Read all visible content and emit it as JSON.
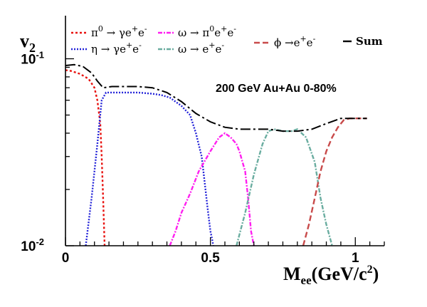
{
  "chart_data": {
    "type": "line",
    "title": "",
    "annotation": "200 GeV Au+Au 0-80%",
    "xlabel": {
      "main": "M",
      "sub": "ee",
      "rest": "(GeV/c",
      "sup": "2",
      "close": ")"
    },
    "ylabel": {
      "main": "v",
      "sub": "2"
    },
    "xlim": [
      0,
      1.1
    ],
    "ylim": [
      0.01,
      0.17
    ],
    "yscale": "log",
    "xticks": [
      {
        "v": 0,
        "label": "0"
      },
      {
        "v": 0.5,
        "label": "0.5"
      },
      {
        "v": 1,
        "label": "1"
      }
    ],
    "yticks": [
      {
        "v": 0.1,
        "base": "10",
        "exp": "-1"
      },
      {
        "v": 0.01,
        "base": "10",
        "exp": "-2"
      }
    ],
    "grid": false,
    "legend_position": "top",
    "series": [
      {
        "key": "pi0",
        "name": "π⁰ → γe⁺e⁻",
        "label_parts": [
          "π",
          "0",
          " → γe",
          "+",
          "e",
          "-"
        ],
        "color": "#e8120f",
        "dash": "3,3",
        "x": [
          0.0,
          0.02,
          0.05,
          0.08,
          0.1,
          0.11,
          0.12,
          0.125,
          0.13,
          0.135
        ],
        "y": [
          0.087,
          0.086,
          0.083,
          0.078,
          0.07,
          0.06,
          0.045,
          0.03,
          0.018,
          0.01
        ]
      },
      {
        "key": "eta",
        "name": "η → γe⁺e⁻",
        "label_parts": [
          "η",
          "",
          " → γe",
          "+",
          "e",
          "-"
        ],
        "color": "#2323d8",
        "dash": "2,2",
        "x": [
          0.07,
          0.09,
          0.11,
          0.125,
          0.14,
          0.16,
          0.2,
          0.25,
          0.3,
          0.33,
          0.36,
          0.4,
          0.43,
          0.45,
          0.47,
          0.48,
          0.49,
          0.5,
          0.505,
          0.51
        ],
        "y": [
          0.01,
          0.018,
          0.035,
          0.06,
          0.066,
          0.066,
          0.066,
          0.066,
          0.065,
          0.064,
          0.062,
          0.056,
          0.05,
          0.04,
          0.03,
          0.022,
          0.016,
          0.012,
          0.011,
          0.01
        ]
      },
      {
        "key": "omega_dalitz",
        "name": "ω → π⁰e⁺e⁻",
        "label_parts": [
          "ω",
          "",
          " → π",
          "0",
          "e",
          "+",
          "e",
          "-"
        ],
        "color": "#ff1ff0",
        "dash": "6,2,2,2",
        "x": [
          0.36,
          0.38,
          0.4,
          0.43,
          0.46,
          0.5,
          0.53,
          0.55,
          0.57,
          0.59,
          0.6,
          0.62,
          0.63,
          0.64,
          0.65
        ],
        "y": [
          0.01,
          0.012,
          0.015,
          0.019,
          0.025,
          0.032,
          0.038,
          0.04,
          0.038,
          0.035,
          0.032,
          0.025,
          0.018,
          0.012,
          0.01
        ]
      },
      {
        "key": "omega",
        "name": "ω → e⁺e⁻",
        "label_parts": [
          "ω",
          "",
          " → e",
          "+",
          "e",
          "-"
        ],
        "color": "#6aada0",
        "dash": "6,2,2,2",
        "x": [
          0.59,
          0.62,
          0.65,
          0.68,
          0.7,
          0.72,
          0.75,
          0.78,
          0.8,
          0.83,
          0.86,
          0.88,
          0.9,
          0.92
        ],
        "y": [
          0.01,
          0.015,
          0.024,
          0.035,
          0.041,
          0.042,
          0.041,
          0.041,
          0.042,
          0.038,
          0.028,
          0.018,
          0.013,
          0.01
        ]
      },
      {
        "key": "phi",
        "name": "ϕ → e⁺e⁻",
        "label_parts": [
          "ϕ",
          "",
          " →e",
          "+",
          "e",
          "-"
        ],
        "color": "#c84a4a",
        "dash": "8,4",
        "x": [
          0.82,
          0.84,
          0.86,
          0.88,
          0.9,
          0.92,
          0.94,
          0.96,
          0.98,
          1.0,
          1.02,
          1.04
        ],
        "y": [
          0.01,
          0.013,
          0.018,
          0.025,
          0.032,
          0.038,
          0.043,
          0.047,
          0.048,
          0.048,
          0.048,
          0.048
        ]
      },
      {
        "key": "sum",
        "name": "Sum",
        "label_parts": [
          "Sum"
        ],
        "color": "#000000",
        "dash": "14,4,3,4",
        "x": [
          0.0,
          0.03,
          0.06,
          0.09,
          0.11,
          0.13,
          0.16,
          0.2,
          0.25,
          0.3,
          0.35,
          0.4,
          0.45,
          0.5,
          0.55,
          0.6,
          0.65,
          0.7,
          0.75,
          0.8,
          0.85,
          0.9,
          0.95,
          1.0,
          1.04
        ],
        "y": [
          0.092,
          0.093,
          0.091,
          0.084,
          0.076,
          0.07,
          0.071,
          0.071,
          0.071,
          0.07,
          0.066,
          0.059,
          0.051,
          0.046,
          0.043,
          0.042,
          0.042,
          0.042,
          0.041,
          0.041,
          0.042,
          0.045,
          0.048,
          0.048,
          0.048
        ]
      }
    ]
  }
}
